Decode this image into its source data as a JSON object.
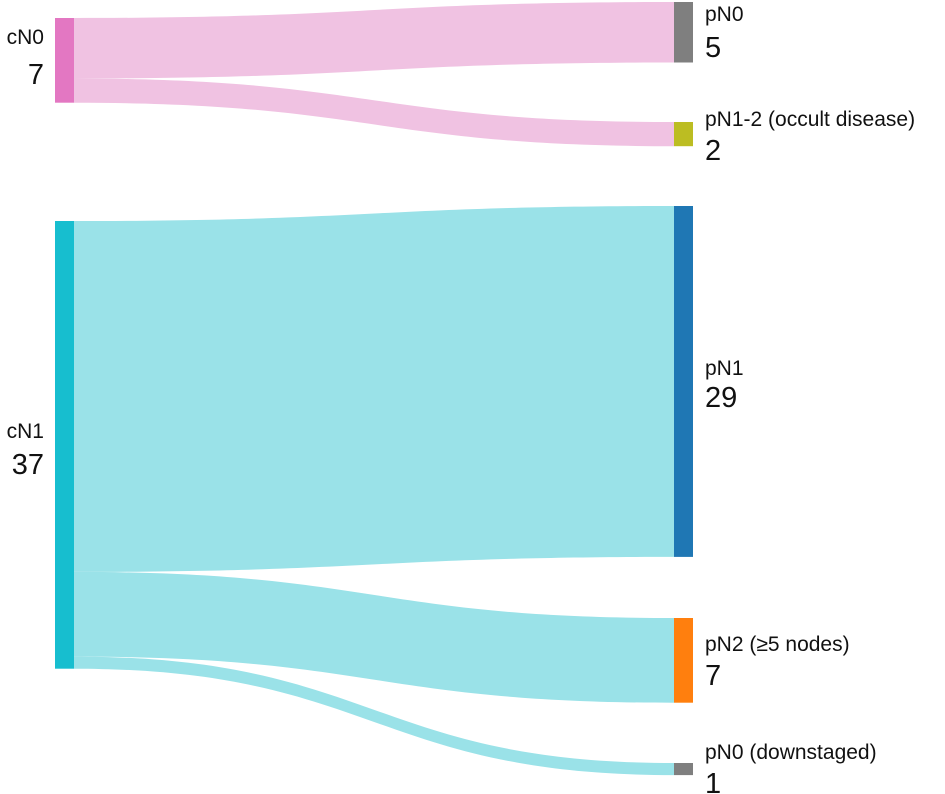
{
  "chart_data": {
    "type": "sankey",
    "title": "",
    "nodes": [
      {
        "id": "cN0",
        "label": "cN0",
        "count": "7",
        "value": 7,
        "color": "#E377C2"
      },
      {
        "id": "cN1",
        "label": "cN1",
        "count": "37",
        "value": 37,
        "color": "#17BECF"
      },
      {
        "id": "pN0",
        "label": "pN0",
        "count": "5",
        "value": 5,
        "color": "#7F7F7F"
      },
      {
        "id": "pN1-2",
        "label": "pN1-2 (occult disease)",
        "count": "2",
        "value": 2,
        "color": "#BCBD22"
      },
      {
        "id": "pN1",
        "label": "pN1",
        "count": "29",
        "value": 29,
        "color": "#1F77B4"
      },
      {
        "id": "pN2",
        "label": "pN2 (≥5 nodes)",
        "count": "7",
        "value": 7,
        "color": "#FF7F0E"
      },
      {
        "id": "pN0-down",
        "label": "pN0 (downstaged)",
        "count": "1",
        "value": 1,
        "color": "#7F7F7F"
      }
    ],
    "links": [
      {
        "source": "cN0",
        "target": "pN0",
        "value": 5,
        "color": "#F0C2E2"
      },
      {
        "source": "cN0",
        "target": "pN1-2",
        "value": 2,
        "color": "#F0C2E2"
      },
      {
        "source": "cN1",
        "target": "pN1",
        "value": 29,
        "color": "#9AE2E8"
      },
      {
        "source": "cN1",
        "target": "pN2",
        "value": 7,
        "color": "#9AE2E8"
      },
      {
        "source": "cN1",
        "target": "pN0-down",
        "value": 1,
        "color": "#9AE2E8"
      }
    ]
  }
}
